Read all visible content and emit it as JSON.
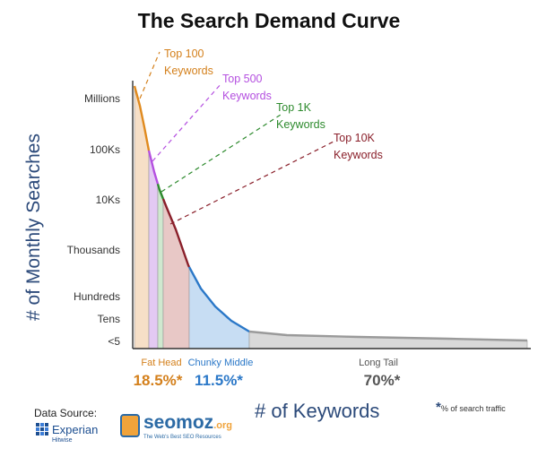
{
  "chart_data": {
    "type": "area",
    "title": "The Search Demand Curve",
    "xlabel": "# of Keywords",
    "ylabel": "# of Monthly Searches",
    "y_ticks": [
      "Millions",
      "100Ks",
      "10Ks",
      "Thousands",
      "Hundreds",
      "Tens",
      "<5"
    ],
    "callouts": [
      {
        "label": "Top 100\nKeywords",
        "color": "#d4801c"
      },
      {
        "label": "Top 500\nKeywords",
        "color": "#b44fe0"
      },
      {
        "label": "Top 1K\nKeywords",
        "color": "#2d8a2d"
      },
      {
        "label": "Top 10K\nKeywords",
        "color": "#8a1f2a"
      }
    ],
    "segments": [
      {
        "name": "Fat Head",
        "percent": "18.5%*",
        "label_color": "#d4801c"
      },
      {
        "name": "Chunky Middle",
        "percent": "11.5%*",
        "label_color": "#2b78c8"
      },
      {
        "name": "Long Tail",
        "percent": "70%*",
        "label_color": "#555555"
      }
    ],
    "grid": false
  },
  "source": {
    "label": "Data Source:",
    "experian": "Experian",
    "hitwise": "Hitwise",
    "seomoz": "seomoz",
    "seomoz_tld": ".org",
    "seomoz_tagline": "The Web's Best SEO Resources"
  },
  "footnote": {
    "star": "*",
    "text": "% of search traffic"
  }
}
